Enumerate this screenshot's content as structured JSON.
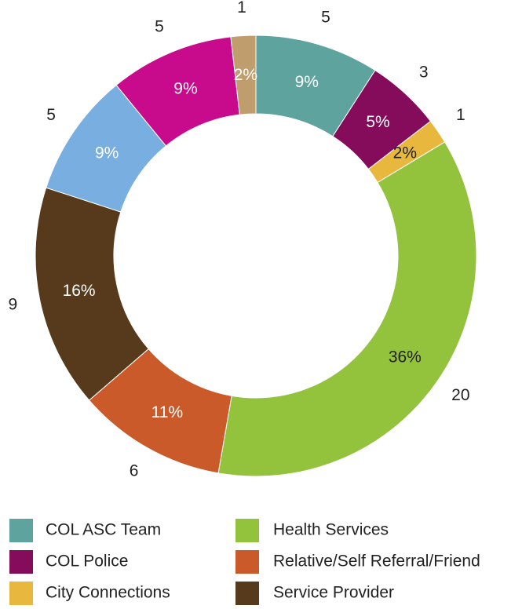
{
  "chart_data": {
    "type": "donut",
    "categories": [
      "COL ASC Team",
      "COL Police",
      "City Connections",
      "Health Services",
      "Relative/Self Referral/Friend",
      "Service Provider",
      null,
      null,
      null
    ],
    "values": [
      5,
      3,
      1,
      20,
      6,
      9,
      5,
      5,
      1
    ],
    "percent_labels": [
      "9%",
      "5%",
      "2%",
      "36%",
      "11%",
      "16%",
      "9%",
      "9%",
      "2%"
    ],
    "colors": [
      "#5fa39e",
      "#850c5a",
      "#e8b83e",
      "#93c23d",
      "#cb5a2a",
      "#573a1c",
      "#79aee0",
      "#c80b8c",
      "#bf9d6d"
    ],
    "legend": true
  }
}
